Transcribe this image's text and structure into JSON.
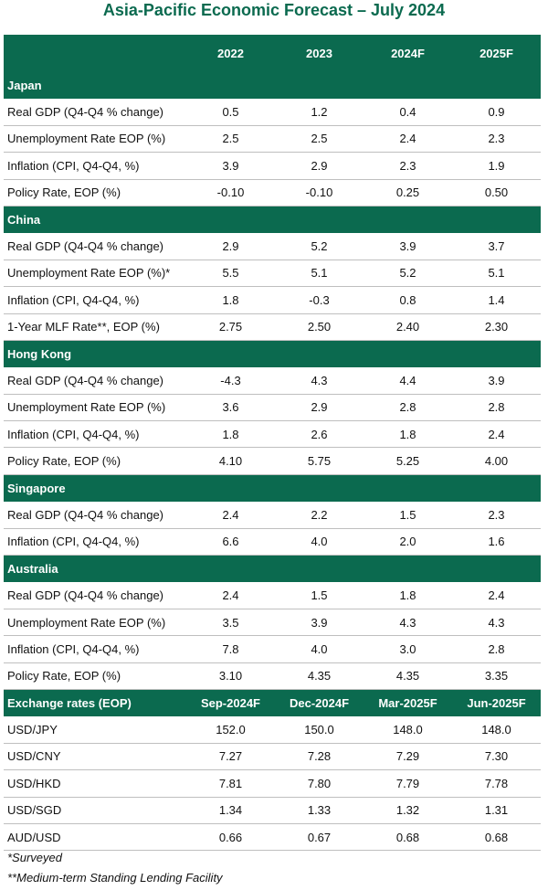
{
  "title": "Asia-Pacific Economic Forecast – July 2024",
  "header": {
    "label": "",
    "cols": [
      "2022",
      "2023",
      "2024F",
      "2025F"
    ]
  },
  "sections": [
    {
      "name": "Japan",
      "rows": [
        {
          "label": "Real GDP (Q4-Q4 % change)",
          "values": [
            "0.5",
            "1.2",
            "0.4",
            "0.9"
          ]
        },
        {
          "label": "Unemployment Rate EOP (%)",
          "values": [
            "2.5",
            "2.5",
            "2.4",
            "2.3"
          ]
        },
        {
          "label": "Inflation (CPI, Q4-Q4, %)",
          "values": [
            "3.9",
            "2.9",
            "2.3",
            "1.9"
          ]
        },
        {
          "label": "Policy Rate, EOP (%)",
          "values": [
            "-0.10",
            "-0.10",
            "0.25",
            "0.50"
          ]
        }
      ]
    },
    {
      "name": "China",
      "rows": [
        {
          "label": "Real GDP (Q4-Q4 % change)",
          "values": [
            "2.9",
            "5.2",
            "3.9",
            "3.7"
          ]
        },
        {
          "label": "Unemployment Rate EOP (%)*",
          "values": [
            "5.5",
            "5.1",
            "5.2",
            "5.1"
          ]
        },
        {
          "label": "Inflation (CPI, Q4-Q4, %)",
          "values": [
            "1.8",
            "-0.3",
            "0.8",
            "1.4"
          ]
        },
        {
          "label": "1-Year MLF Rate**, EOP (%)",
          "values": [
            "2.75",
            "2.50",
            "2.40",
            "2.30"
          ]
        }
      ]
    },
    {
      "name": "Hong Kong",
      "rows": [
        {
          "label": "Real GDP (Q4-Q4 % change)",
          "values": [
            "-4.3",
            "4.3",
            "4.4",
            "3.9"
          ]
        },
        {
          "label": "Unemployment Rate EOP (%)",
          "values": [
            "3.6",
            "2.9",
            "2.8",
            "2.8"
          ]
        },
        {
          "label": "Inflation (CPI, Q4-Q4, %)",
          "values": [
            "1.8",
            "2.6",
            "1.8",
            "2.4"
          ]
        },
        {
          "label": "Policy Rate, EOP (%)",
          "values": [
            "4.10",
            "5.75",
            "5.25",
            "4.00"
          ]
        }
      ]
    },
    {
      "name": "Singapore",
      "rows": [
        {
          "label": "Real GDP (Q4-Q4 % change)",
          "values": [
            "2.4",
            "2.2",
            "1.5",
            "2.3"
          ]
        },
        {
          "label": "Inflation (CPI, Q4-Q4, %)",
          "values": [
            "6.6",
            "4.0",
            "2.0",
            "1.6"
          ]
        }
      ]
    },
    {
      "name": "Australia",
      "rows": [
        {
          "label": "Real GDP (Q4-Q4 % change)",
          "values": [
            "2.4",
            "1.5",
            "1.8",
            "2.4"
          ]
        },
        {
          "label": "Unemployment Rate EOP (%)",
          "values": [
            "3.5",
            "3.9",
            "4.3",
            "4.3"
          ]
        },
        {
          "label": "Inflation (CPI, Q4-Q4, %)",
          "values": [
            "7.8",
            "4.0",
            "3.0",
            "2.8"
          ]
        },
        {
          "label": "Policy Rate, EOP (%)",
          "values": [
            "3.10",
            "4.35",
            "4.35",
            "3.35"
          ]
        }
      ]
    }
  ],
  "fx": {
    "label": "Exchange rates (EOP)",
    "cols": [
      "Sep-2024F",
      "Dec-2024F",
      "Mar-2025F",
      "Jun-2025F"
    ],
    "rows": [
      {
        "label": "USD/JPY",
        "values": [
          "152.0",
          "150.0",
          "148.0",
          "148.0"
        ]
      },
      {
        "label": "USD/CNY",
        "values": [
          "7.27",
          "7.28",
          "7.29",
          "7.30"
        ]
      },
      {
        "label": "USD/HKD",
        "values": [
          "7.81",
          "7.80",
          "7.79",
          "7.78"
        ]
      },
      {
        "label": "USD/SGD",
        "values": [
          "1.34",
          "1.33",
          "1.32",
          "1.31"
        ]
      },
      {
        "label": "AUD/USD",
        "values": [
          "0.66",
          "0.67",
          "0.68",
          "0.68"
        ]
      }
    ]
  },
  "notes": [
    "*Surveyed",
    "**Medium-term Standing Lending Facility"
  ],
  "colors": {
    "accent": "#0b6a4f",
    "rule": "#bfbfbf",
    "header_text": "#ffffff"
  }
}
